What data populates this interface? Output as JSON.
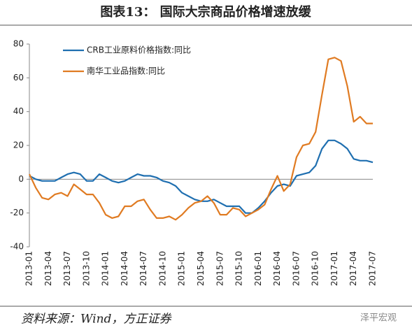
{
  "chart_data": {
    "type": "line",
    "title": "图表13： 国际大宗商品价格增速放缓",
    "source": "资料来源：Wind，方正证券",
    "watermark": "泽平宏观",
    "categories": [
      "2013-01",
      null,
      null,
      "2013-04",
      null,
      null,
      "2013-07",
      null,
      null,
      "2013-10",
      null,
      null,
      "2014-01",
      null,
      null,
      "2014-04",
      null,
      null,
      "2014-07",
      null,
      null,
      "2014-10",
      null,
      null,
      "2015-01",
      null,
      null,
      "2015-04",
      null,
      null,
      "2015-07",
      null,
      null,
      "2015-10",
      null,
      null,
      "2016-01",
      null,
      null,
      "2016-04",
      null,
      null,
      "2016-07",
      null,
      null,
      "2016-10",
      null,
      null,
      "2017-01",
      null,
      null,
      "2017-04",
      null,
      null,
      "2017-07"
    ],
    "series": [
      {
        "name": "CRB工业原料价格指数:同比",
        "color": "#1f6fb0",
        "values": [
          2,
          0,
          -1,
          -1,
          -1,
          1,
          3,
          4,
          3,
          -1,
          -1,
          3,
          1,
          -1,
          -2,
          -1,
          1,
          3,
          2,
          2,
          1,
          -1,
          -2,
          -4,
          -8,
          -10,
          -12,
          -13,
          -13,
          -12,
          -14,
          -16,
          -16,
          -16,
          -20,
          -20,
          -17,
          -13,
          -8,
          -4,
          -3,
          -4,
          2,
          3,
          4,
          8,
          18,
          23,
          23,
          21,
          18,
          12,
          11,
          11,
          10
        ]
      },
      {
        "name": "南华工业品指数:同比",
        "color": "#e07b22",
        "values": [
          3,
          -5,
          -11,
          -12,
          -9,
          -8,
          -10,
          -3,
          -6,
          -9,
          -9,
          -14,
          -21,
          -23,
          -22,
          -16,
          -16,
          -13,
          -12,
          -18,
          -23,
          -23,
          -22,
          -24,
          -21,
          -17,
          -14,
          -13,
          -10,
          -14,
          -21,
          -21,
          -17,
          -18,
          -22,
          -20,
          -18,
          -15,
          -6,
          2,
          -7,
          -3,
          13,
          20,
          21,
          28,
          50,
          71,
          72,
          70,
          55,
          34,
          37,
          33,
          33
        ]
      }
    ],
    "ylim": [
      -40,
      80
    ],
    "yticks": [
      -40,
      -20,
      0,
      20,
      40,
      60,
      80
    ],
    "grid": false
  }
}
